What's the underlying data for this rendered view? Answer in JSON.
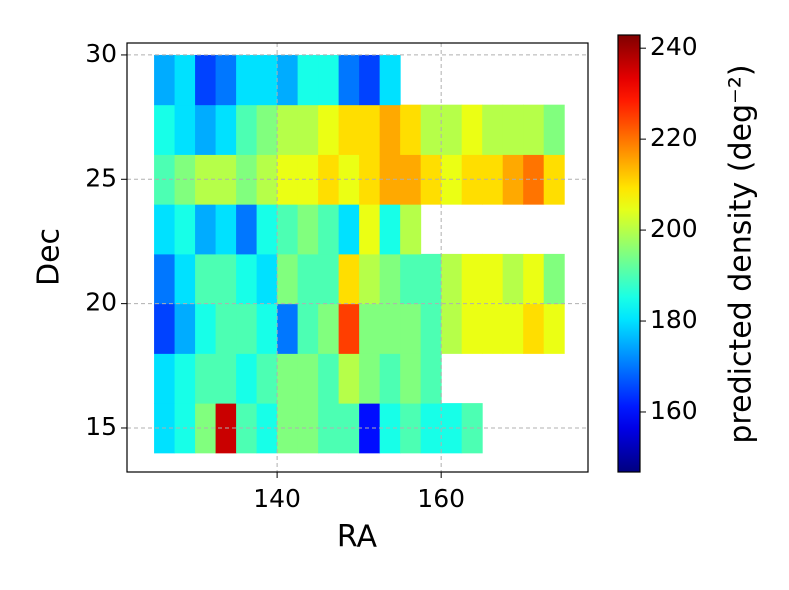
{
  "chart_data": {
    "type": "heatmap",
    "xlabel": "RA",
    "ylabel": "Dec",
    "colorbar_label": "predicted density (deg⁻²)",
    "colormap": "jet",
    "grid": true,
    "x_edges": [
      125,
      127.5,
      130,
      132.5,
      135,
      137.5,
      140,
      142.5,
      145,
      147.5,
      150,
      152.5,
      155,
      157.5,
      160,
      162.5,
      165,
      167.5,
      170,
      172.5,
      175
    ],
    "y_edges": [
      14,
      16,
      18,
      20,
      22,
      24,
      26,
      28,
      30
    ],
    "values": [
      [
        180,
        185,
        195,
        236,
        190,
        185,
        195,
        195,
        190,
        190,
        160,
        185,
        190,
        185,
        185,
        190,
        null,
        null,
        null,
        null
      ],
      [
        180,
        185,
        190,
        190,
        185,
        190,
        195,
        195,
        190,
        200,
        195,
        190,
        195,
        190,
        null,
        null,
        null,
        null,
        null,
        null
      ],
      [
        165,
        175,
        185,
        190,
        190,
        185,
        170,
        190,
        195,
        225,
        195,
        195,
        195,
        190,
        200,
        205,
        205,
        205,
        210,
        205
      ],
      [
        170,
        180,
        190,
        190,
        185,
        180,
        195,
        190,
        190,
        210,
        200,
        195,
        190,
        190,
        200,
        205,
        205,
        200,
        205,
        195
      ],
      [
        180,
        185,
        175,
        180,
        170,
        185,
        190,
        195,
        190,
        180,
        205,
        185,
        200,
        null,
        null,
        null,
        null,
        null,
        null,
        null
      ],
      [
        190,
        195,
        200,
        200,
        195,
        200,
        205,
        205,
        210,
        205,
        210,
        215,
        215,
        210,
        205,
        210,
        210,
        215,
        220,
        210
      ],
      [
        185,
        180,
        175,
        180,
        190,
        195,
        200,
        200,
        205,
        210,
        210,
        215,
        210,
        200,
        200,
        205,
        200,
        200,
        200,
        195
      ],
      [
        175,
        180,
        165,
        170,
        180,
        180,
        175,
        185,
        185,
        170,
        165,
        180,
        null,
        null,
        null,
        null,
        null,
        null,
        null,
        null
      ]
    ],
    "xlim": [
      121.7,
      177.9
    ],
    "ylim": [
      13.23,
      30.48
    ],
    "xticks": [
      140,
      160
    ],
    "yticks": [
      15,
      20,
      25,
      30
    ],
    "clim": [
      146.8,
      242.9
    ],
    "cticks": [
      160,
      180,
      200,
      220,
      240
    ]
  }
}
